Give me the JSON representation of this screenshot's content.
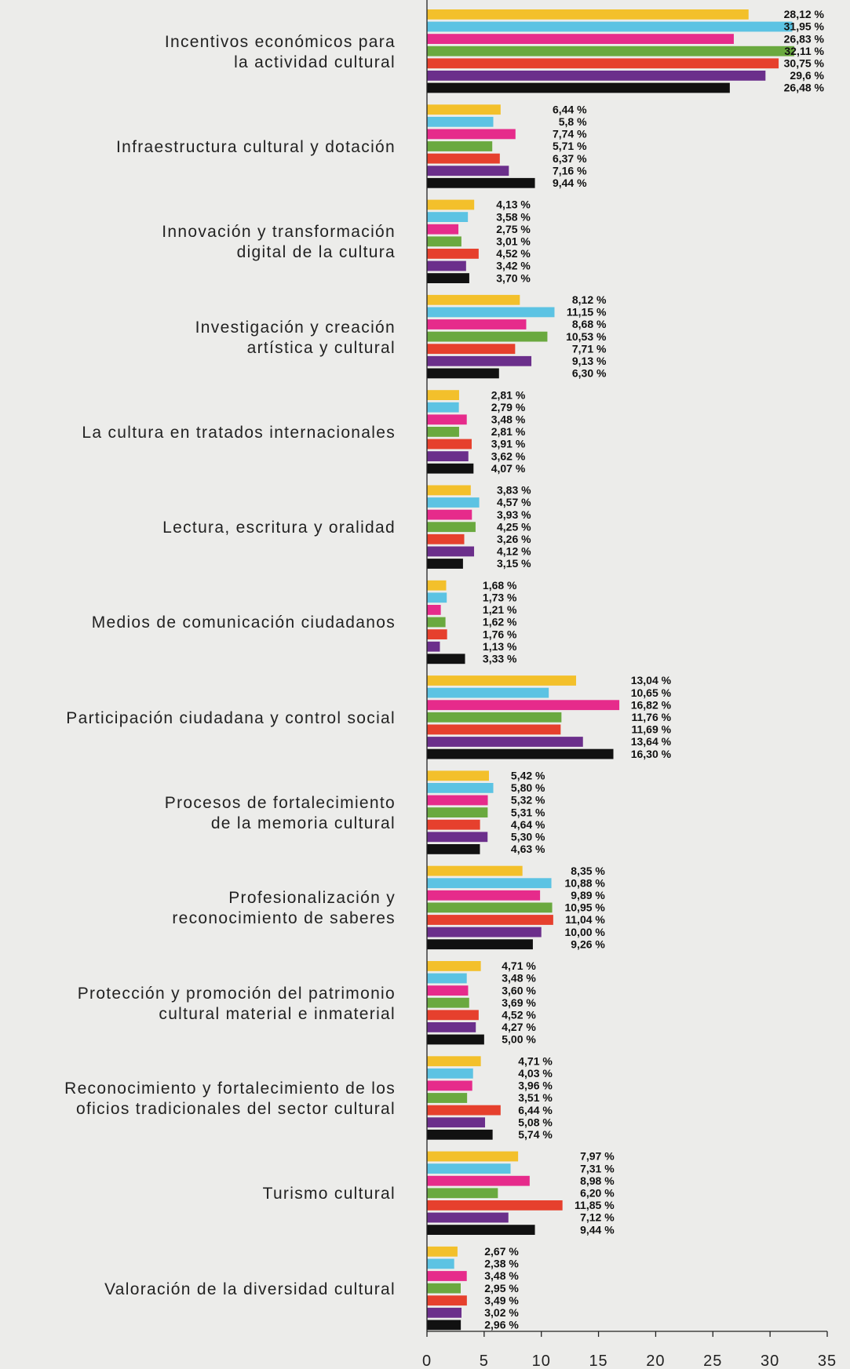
{
  "chart_data": {
    "type": "bar",
    "orientation": "horizontal",
    "categories": [
      "Incentivos económicos para\nla actividad cultural",
      "Infraestructura cultural y dotación",
      "Innovación y transformación\ndigital de la cultura",
      "Investigación y creación\nartística y cultural",
      "La cultura en tratados internacionales",
      "Lectura, escritura y oralidad",
      "Medios de comunicación ciudadanos",
      "Participación ciudadana y control social",
      "Procesos de fortalecimiento\nde la memoria cultural",
      "Profesionalización y\nreconocimiento de saberes",
      "Protección y promoción del patrimonio\ncultural material e inmaterial",
      "Reconocimiento y fortalecimiento de los\noficios tradicionales del sector cultural",
      "Turismo cultural",
      "Valoración de la diversidad cultural"
    ],
    "series": [
      {
        "color": "#f3c02b",
        "values": [
          28.12,
          6.44,
          4.13,
          8.12,
          2.81,
          3.83,
          1.68,
          13.04,
          5.42,
          8.35,
          4.71,
          4.71,
          7.97,
          2.67
        ],
        "value_labels": [
          "28,12 %",
          "6,44 %",
          "4,13 %",
          "8,12 %",
          "2,81 %",
          "3,83 %",
          "1,68 %",
          "13,04 %",
          "5,42 %",
          "8,35 %",
          "4,71 %",
          "4,71 %",
          "7,97 %",
          "2,67 %"
        ]
      },
      {
        "color": "#5cc3e3",
        "values": [
          31.95,
          5.8,
          3.58,
          11.15,
          2.79,
          4.57,
          1.73,
          10.65,
          5.8,
          10.88,
          3.48,
          4.03,
          7.31,
          2.38
        ],
        "value_labels": [
          "31,95 %",
          "5,8 %",
          "3,58 %",
          "11,15 %",
          "2,79 %",
          "4,57 %",
          "1,73 %",
          "10,65 %",
          "5,80 %",
          "10,88 %",
          "3,48 %",
          "4,03 %",
          "7,31 %",
          "2,38 %"
        ]
      },
      {
        "color": "#e62b8b",
        "values": [
          26.83,
          7.74,
          2.75,
          8.68,
          3.48,
          3.93,
          1.21,
          16.82,
          5.32,
          9.89,
          3.6,
          3.96,
          8.98,
          3.48
        ],
        "value_labels": [
          "26,83 %",
          "7,74 %",
          "2,75 %",
          "8,68 %",
          "3,48 %",
          "3,93 %",
          "1,21 %",
          "16,82 %",
          "5,32 %",
          "9,89 %",
          "3,60 %",
          "3,96 %",
          "8,98 %",
          "3,48 %"
        ]
      },
      {
        "color": "#6aa93f",
        "values": [
          32.11,
          5.71,
          3.01,
          10.53,
          2.81,
          4.25,
          1.62,
          11.76,
          5.31,
          10.95,
          3.69,
          3.51,
          6.2,
          2.95
        ],
        "value_labels": [
          "32,11 %",
          "5,71 %",
          "3,01 %",
          "10,53 %",
          "2,81 %",
          "4,25 %",
          "1,62 %",
          "11,76 %",
          "5,31 %",
          "10,95 %",
          "3,69 %",
          "3,51 %",
          "6,20 %",
          "2,95 %"
        ]
      },
      {
        "color": "#e6402d",
        "values": [
          30.75,
          6.37,
          4.52,
          7.71,
          3.91,
          3.26,
          1.76,
          11.69,
          4.64,
          11.04,
          4.52,
          6.44,
          11.85,
          3.49
        ],
        "value_labels": [
          "30,75 %",
          "6,37 %",
          "4,52 %",
          "7,71 %",
          "3,91 %",
          "3,26 %",
          "1,76 %",
          "11,69 %",
          "4,64 %",
          "11,04 %",
          "4,52 %",
          "6,44 %",
          "11,85 %",
          "3,49 %"
        ]
      },
      {
        "color": "#6b2f8b",
        "values": [
          29.6,
          7.16,
          3.42,
          9.13,
          3.62,
          4.12,
          1.13,
          13.64,
          5.3,
          10.0,
          4.27,
          5.08,
          7.12,
          3.02
        ],
        "value_labels": [
          "29,6 %",
          "7,16 %",
          "3,42 %",
          "9,13 %",
          "3,62 %",
          "4,12 %",
          "1,13 %",
          "13,64 %",
          "5,30 %",
          "10,00 %",
          "4,27 %",
          "5,08 %",
          "7,12 %",
          "3,02 %"
        ]
      },
      {
        "color": "#111111",
        "values": [
          26.48,
          9.44,
          3.7,
          6.3,
          4.07,
          3.15,
          3.33,
          16.3,
          4.63,
          9.26,
          5.0,
          5.74,
          9.44,
          2.96
        ],
        "value_labels": [
          "26,48 %",
          "9,44 %",
          "3,70 %",
          "6,30 %",
          "4,07 %",
          "3,15 %",
          "3,33 %",
          "16,30 %",
          "4,63 %",
          "9,26 %",
          "5,00 %",
          "5,74 %",
          "9,44 %",
          "2,96 %"
        ]
      }
    ],
    "xlim": [
      0,
      35
    ],
    "xticks": [
      0,
      5,
      10,
      15,
      20,
      25,
      30,
      35
    ]
  }
}
